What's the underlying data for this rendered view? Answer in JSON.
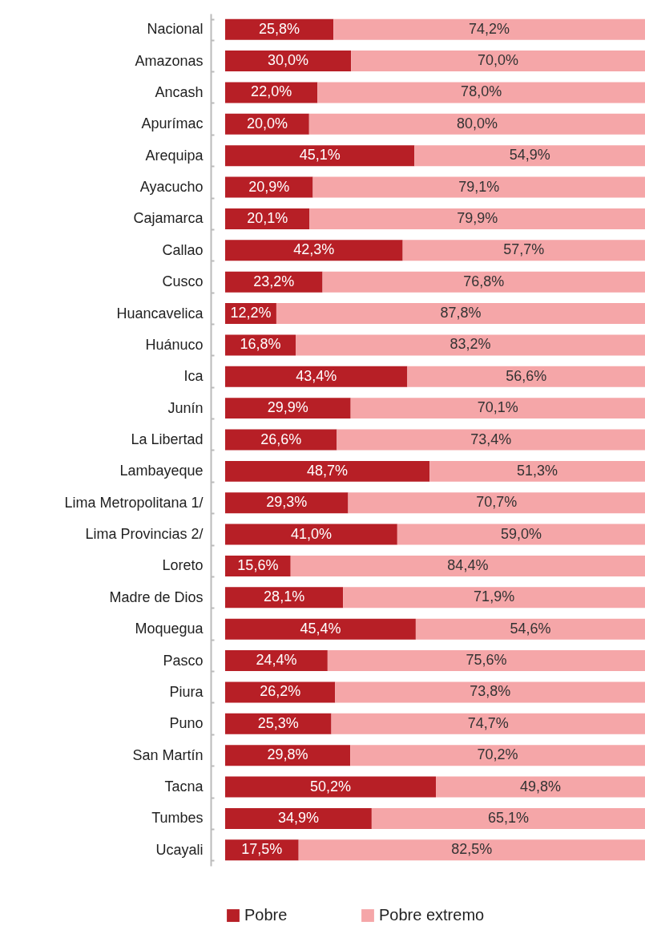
{
  "chart_data": {
    "type": "bar",
    "orientation": "horizontal",
    "stacked": true,
    "legend": "bottom",
    "categories": [
      "Nacional",
      "Amazonas",
      "Ancash",
      "Apurímac",
      "Arequipa",
      "Ayacucho",
      "Cajamarca",
      "Callao",
      "Cusco",
      "Huancavelica",
      "Huánuco",
      "Ica",
      "Junín",
      "La Libertad",
      "Lambayeque",
      "Lima Metropolitana 1/",
      "Lima Provincias 2/",
      "Loreto",
      "Madre de Dios",
      "Moquegua",
      "Pasco",
      "Piura",
      "Puno",
      "San Martín",
      "Tacna",
      "Tumbes",
      "Ucayali"
    ],
    "series": [
      {
        "name": "Pobre",
        "color": "#b71f26",
        "values": [
          25.8,
          30.0,
          22.0,
          20.0,
          45.1,
          20.9,
          20.1,
          42.3,
          23.2,
          12.2,
          16.8,
          43.4,
          29.9,
          26.6,
          48.7,
          29.3,
          41.0,
          15.6,
          28.1,
          45.4,
          24.4,
          26.2,
          25.3,
          29.8,
          50.2,
          34.9,
          17.5
        ],
        "value_labels": [
          "25,8%",
          "30,0%",
          "22,0%",
          "20,0%",
          "45,1%",
          "20,9%",
          "20,1%",
          "42,3%",
          "23,2%",
          "12,2%",
          "16,8%",
          "43,4%",
          "29,9%",
          "26,6%",
          "48,7%",
          "29,3%",
          "41,0%",
          "15,6%",
          "28,1%",
          "45,4%",
          "24,4%",
          "26,2%",
          "25,3%",
          "29,8%",
          "50,2%",
          "34,9%",
          "17,5%"
        ]
      },
      {
        "name": "Pobre extremo",
        "color": "#f5a6a8",
        "values": [
          74.2,
          70.0,
          78.0,
          80.0,
          54.9,
          79.1,
          79.9,
          57.7,
          76.8,
          87.8,
          83.2,
          56.6,
          70.1,
          73.4,
          51.3,
          70.7,
          59.0,
          84.4,
          71.9,
          54.6,
          75.6,
          73.8,
          74.7,
          70.2,
          49.8,
          65.1,
          82.5
        ],
        "value_labels": [
          "74,2%",
          "70,0%",
          "78,0%",
          "80,0%",
          "54,9%",
          "79,1%",
          "79,9%",
          "57,7%",
          "76,8%",
          "87,8%",
          "83,2%",
          "56,6%",
          "70,1%",
          "73,4%",
          "51,3%",
          "70,7%",
          "59,0%",
          "84,4%",
          "71,9%",
          "54,6%",
          "75,6%",
          "73,8%",
          "74,7%",
          "70,2%",
          "49,8%",
          "65,1%",
          "82,5%"
        ]
      }
    ]
  }
}
